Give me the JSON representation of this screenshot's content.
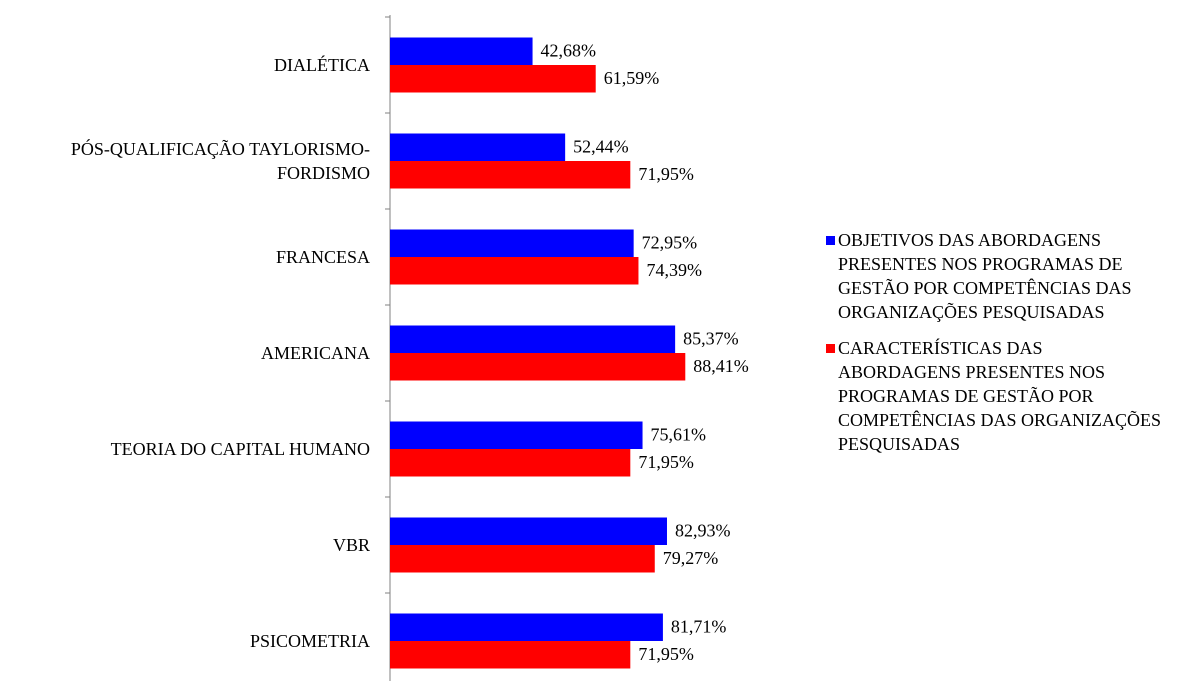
{
  "chart_data": {
    "type": "bar",
    "orientation": "horizontal",
    "categories": [
      "DIALÉTICA",
      "PÓS-QUALIFICAÇÃO TAYLORISMO-FORDISMO",
      "FRANCESA",
      "AMERICANA",
      "TEORIA DO CAPITAL HUMANO",
      "VBR",
      "PSICOMETRIA"
    ],
    "series": [
      {
        "name": "OBJETIVOS DAS ABORDAGENS PRESENTES NOS PROGRAMAS DE GESTÃO POR COMPETÊNCIAS DAS ORGANIZAÇÕES PESQUISADAS",
        "color": "#0000ff",
        "values": [
          42.68,
          52.44,
          72.95,
          85.37,
          75.61,
          82.93,
          81.71
        ],
        "value_labels": [
          "42,68%",
          "52,44%",
          "72,95%",
          "85,37%",
          "75,61%",
          "82,93%",
          "81,71%"
        ]
      },
      {
        "name": "CARACTERÍSTICAS DAS ABORDAGENS PRESENTES NOS PROGRAMAS DE GESTÃO POR COMPETÊNCIAS DAS ORGANIZAÇÕES PESQUISADAS",
        "color": "#ff0000",
        "values": [
          61.59,
          71.95,
          74.39,
          88.41,
          71.95,
          79.27,
          71.95
        ],
        "value_labels": [
          "61,59%",
          "71,95%",
          "74,39%",
          "88,41%",
          "71,95%",
          "79,27%",
          "71,95%"
        ]
      }
    ],
    "xlim": [
      0,
      100
    ],
    "legend": "right"
  }
}
